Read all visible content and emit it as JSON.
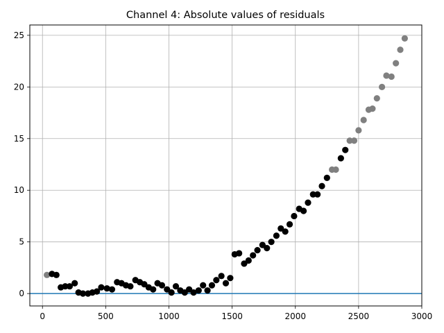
{
  "chart_data": {
    "type": "scatter",
    "title": "Channel 4: Absolute values of residuals",
    "xlabel": "",
    "ylabel": "",
    "xlim": [
      -100,
      3000
    ],
    "ylim": [
      -1.2,
      26
    ],
    "xticks": [
      0,
      500,
      1000,
      1500,
      2000,
      2500,
      3000
    ],
    "yticks": [
      0,
      5,
      10,
      15,
      20,
      25
    ],
    "grid": true,
    "reference_line": {
      "y": 0,
      "color": "#1f77b4"
    },
    "colors": {
      "fitted": "#000000",
      "excluded": "#808080"
    },
    "series": [
      {
        "color": "#808080",
        "x": [
          35,
          2290,
          2320,
          2430,
          2465,
          2500,
          2540,
          2580,
          2610,
          2645,
          2685,
          2720,
          2760,
          2795,
          2830,
          2865
        ],
        "y": [
          1.8,
          12.0,
          12.0,
          14.8,
          14.8,
          15.8,
          16.8,
          17.8,
          17.9,
          18.9,
          20.0,
          21.1,
          21.0,
          22.3,
          23.6,
          24.7
        ]
      },
      {
        "color": "#000000",
        "x": [
          75,
          110,
          145,
          180,
          215,
          255,
          285,
          320,
          360,
          395,
          430,
          465,
          510,
          550,
          590,
          625,
          660,
          695,
          735,
          770,
          805,
          840,
          875,
          910,
          945,
          985,
          1020,
          1055,
          1090,
          1125,
          1160,
          1195,
          1235,
          1270,
          1305,
          1340,
          1375,
          1415,
          1450,
          1485,
          1520,
          1555,
          1595,
          1630,
          1665,
          1700,
          1740,
          1775,
          1810,
          1850,
          1885,
          1920,
          1955,
          1990,
          2030,
          2065,
          2100,
          2140,
          2175,
          2210,
          2250,
          2360,
          2395
        ],
        "y": [
          1.9,
          1.8,
          0.6,
          0.7,
          0.7,
          1.0,
          0.1,
          0.0,
          0.0,
          0.1,
          0.2,
          0.6,
          0.5,
          0.4,
          1.1,
          1.0,
          0.8,
          0.7,
          1.3,
          1.1,
          0.9,
          0.6,
          0.4,
          1.0,
          0.8,
          0.4,
          0.1,
          0.7,
          0.3,
          0.1,
          0.4,
          0.1,
          0.3,
          0.8,
          0.3,
          0.8,
          1.3,
          1.7,
          1.0,
          1.5,
          3.8,
          3.9,
          2.9,
          3.2,
          3.7,
          4.2,
          4.7,
          4.4,
          5.0,
          5.6,
          6.3,
          6.0,
          6.7,
          7.5,
          8.2,
          8.0,
          8.8,
          9.6,
          9.6,
          10.4,
          11.2,
          13.1,
          13.9
        ]
      }
    ]
  }
}
